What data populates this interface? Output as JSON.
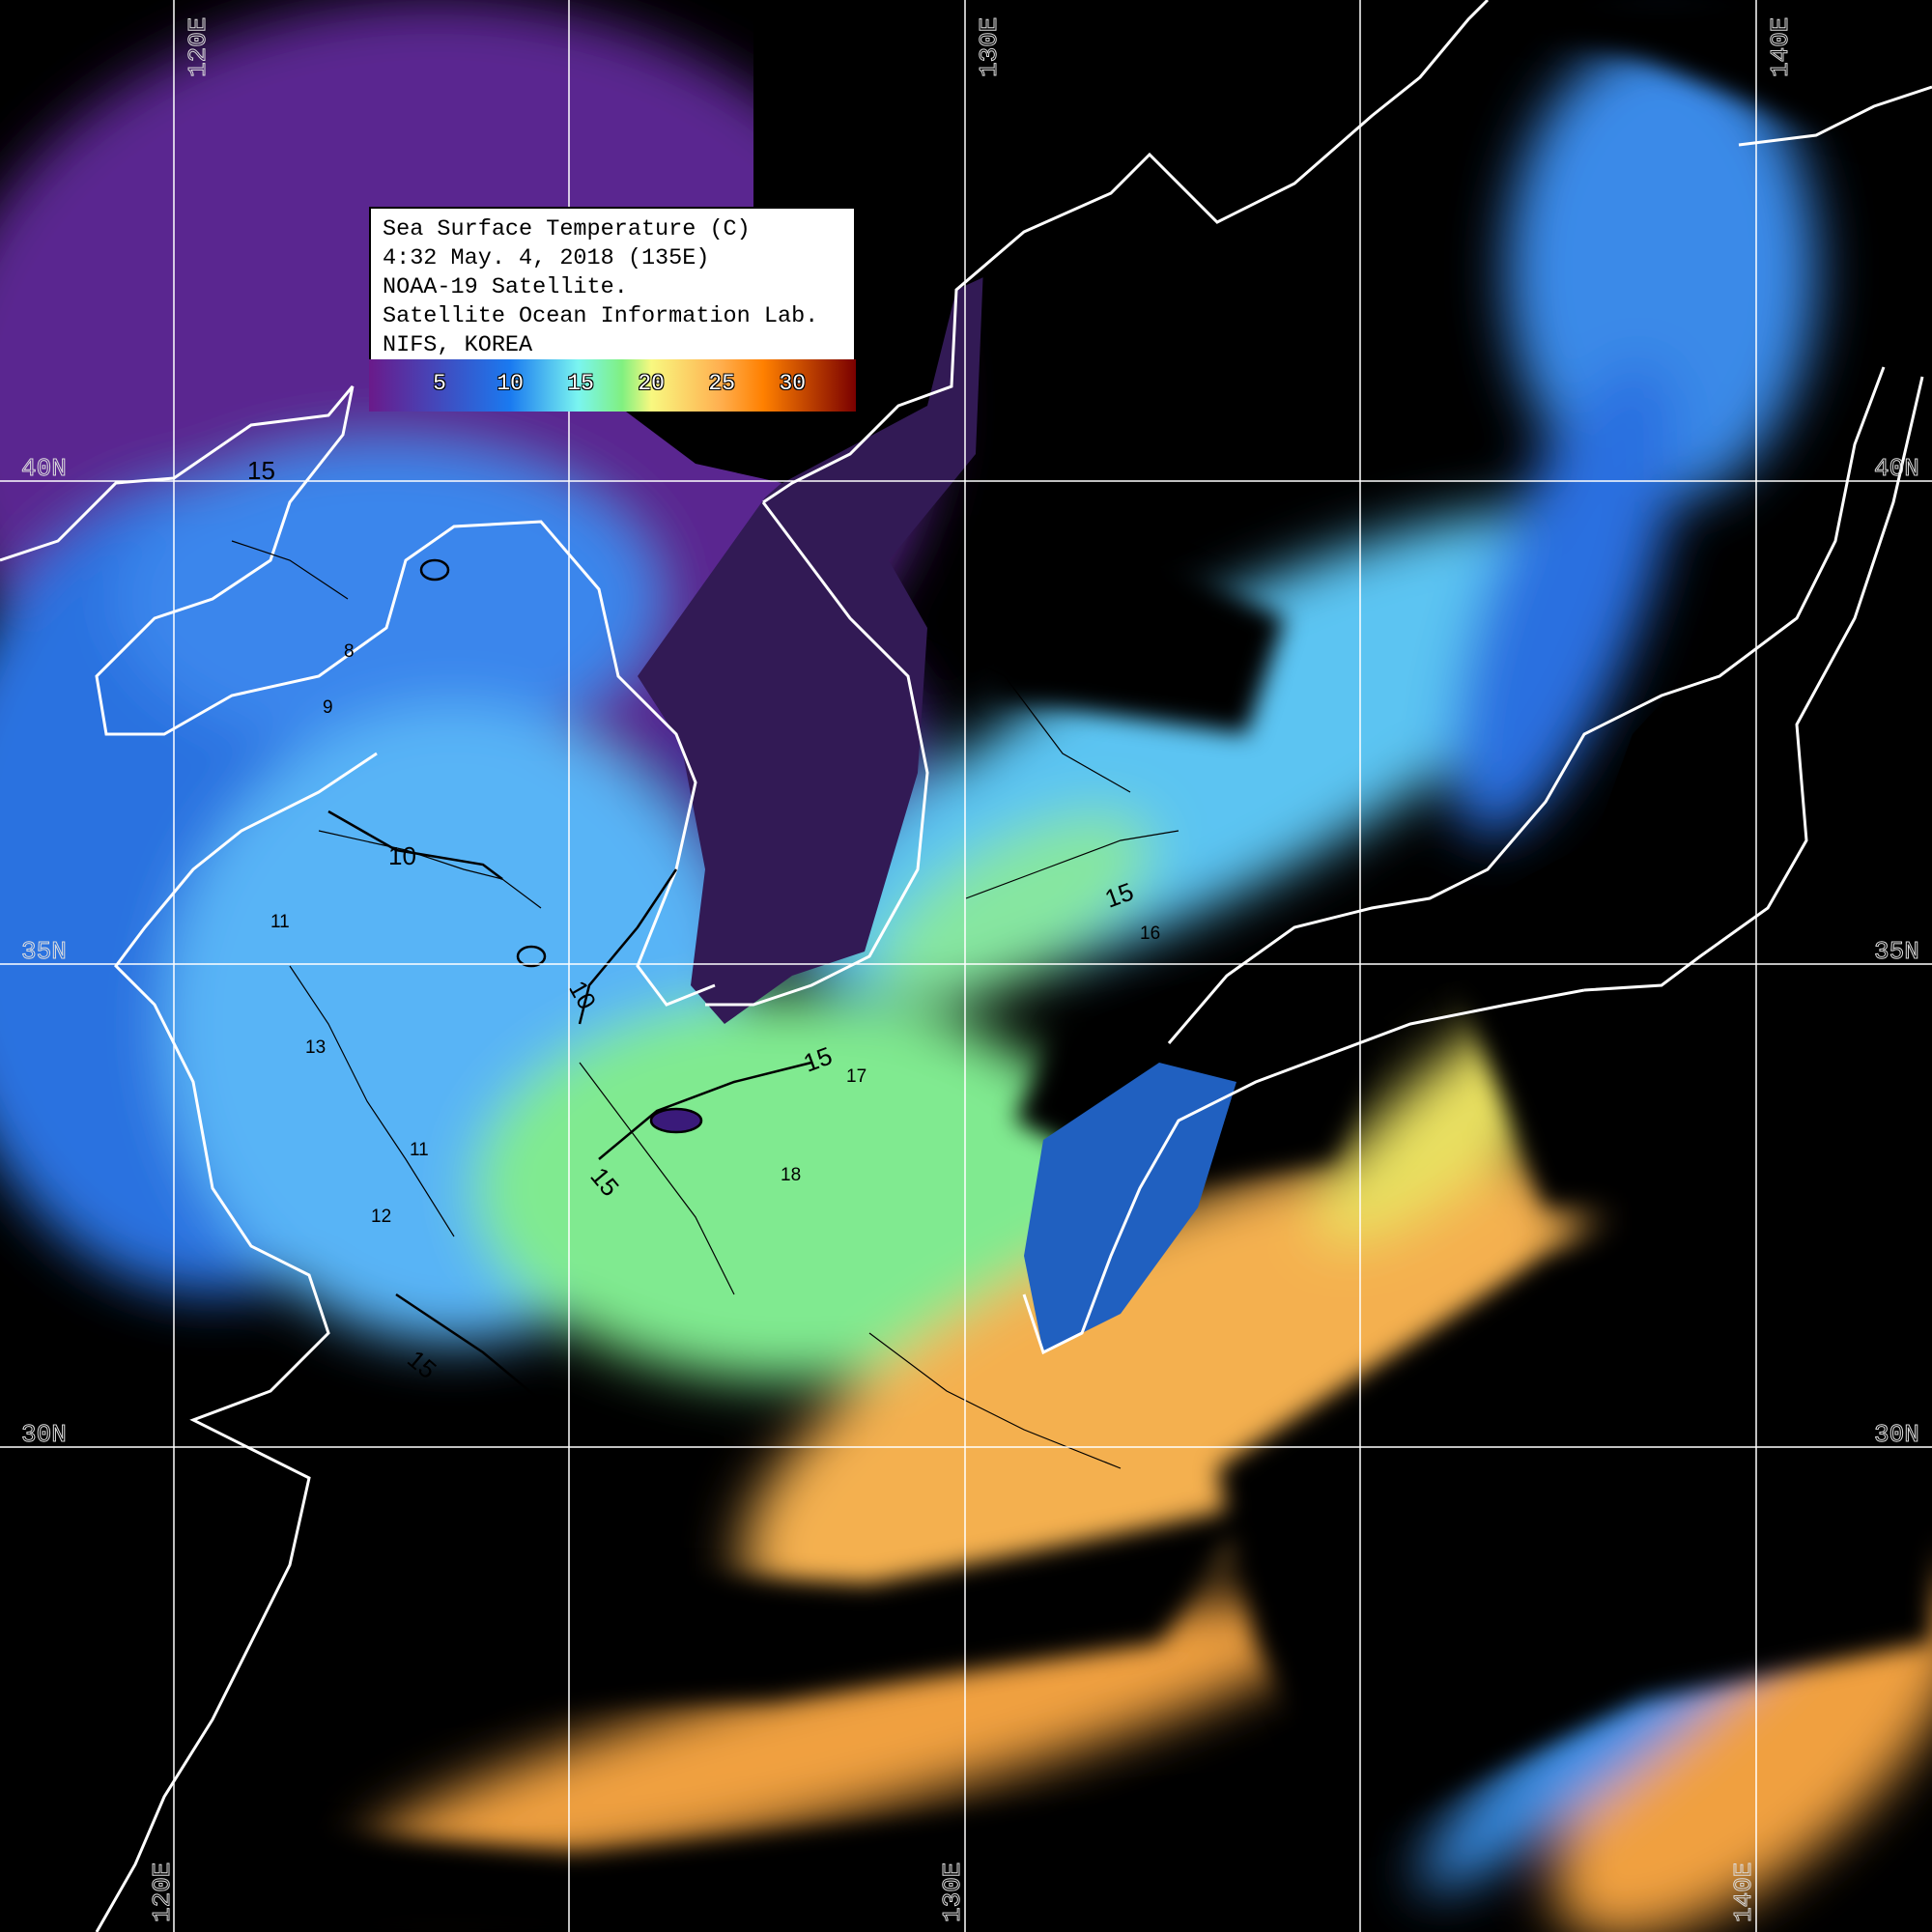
{
  "legend": {
    "lines": [
      "Sea Surface Temperature (C)",
      "4:32 May. 4, 2018 (135E)",
      "NOAA-19 Satellite.",
      "Satellite Ocean Information Lab.",
      "NIFS, KOREA"
    ],
    "colorbar": {
      "range": [
        0,
        34.5
      ],
      "ticks": [
        "5",
        "10",
        "15",
        "20",
        "25",
        "30"
      ],
      "colors": [
        "#6a1a8a",
        "#1a7af0",
        "#7af5f0",
        "#80f080",
        "#f8f880",
        "#ffb050",
        "#ff8000",
        "#7a0000"
      ]
    }
  },
  "grid": {
    "longitude_labels_top": [
      "120E",
      "130E",
      "140E"
    ],
    "longitude_labels_bottom": [
      "120E",
      "130E",
      "140E"
    ],
    "latitude_labels_left": [
      "40N",
      "35N",
      "30N"
    ],
    "latitude_labels_right": [
      "40N",
      "35N",
      "30N"
    ],
    "line_color": "#ffffff"
  },
  "contour_labels": [
    "15",
    "10",
    "10",
    "15",
    "15",
    "15",
    "15",
    "15",
    "11",
    "11",
    "13",
    "16",
    "17",
    "18",
    "12",
    "8",
    "9"
  ],
  "colors": {
    "land_cloud": "#000000",
    "coastline": "#ffffff",
    "contour": "#000000"
  }
}
